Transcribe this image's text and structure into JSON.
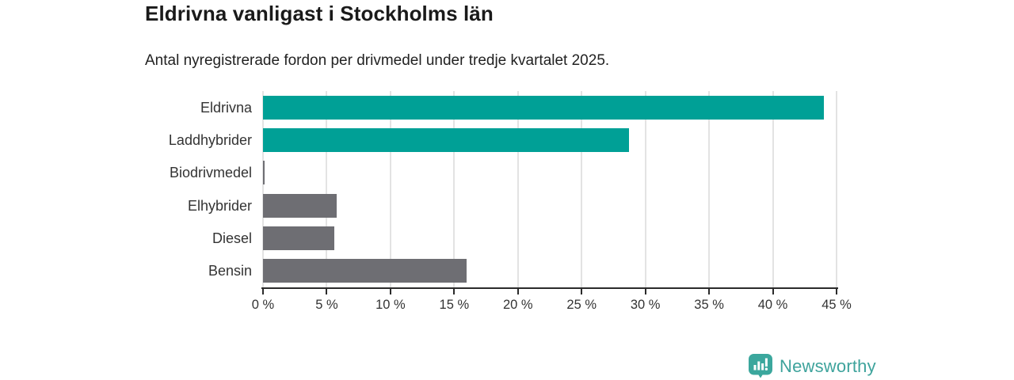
{
  "title": "Eldrivna vanligast i Stockholms län",
  "subtitle": "Antal nyregistrerade fordon per drivmedel under tredje kvartalet 2025.",
  "brand": {
    "name": "Newsworthy",
    "color": "#3ea39c",
    "icon": "speech-bubble-bar-chart"
  },
  "colors": {
    "highlight_bar": "#00a096",
    "muted_bar": "#6e6e73",
    "gridline": "#e3e3e3",
    "axis": "#2b2b2b",
    "text": "#333333",
    "title_text": "#1a1a1a",
    "background": "#ffffff"
  },
  "chart_data": {
    "type": "bar",
    "orientation": "horizontal",
    "title": "Eldrivna vanligast i Stockholms län",
    "subtitle": "Antal nyregistrerade fordon per drivmedel under tredje kvartalet 2025.",
    "categories": [
      "Eldrivna",
      "Laddhybrider",
      "Biodrivmedel",
      "Elhybrider",
      "Diesel",
      "Bensin"
    ],
    "values": [
      44.0,
      28.7,
      0.1,
      5.8,
      5.6,
      16.0
    ],
    "unit": "%",
    "bar_colors": [
      "#00a096",
      "#00a096",
      "#6e6e73",
      "#6e6e73",
      "#6e6e73",
      "#6e6e73"
    ],
    "xlim": [
      0,
      45
    ],
    "x_ticks": [
      0,
      5,
      10,
      15,
      20,
      25,
      30,
      35,
      40,
      45
    ],
    "x_tick_labels": [
      "0 %",
      "5 %",
      "10 %",
      "15 %",
      "20 %",
      "25 %",
      "30 %",
      "35 %",
      "40 %",
      "45 %"
    ],
    "grid": true,
    "legend": false
  }
}
